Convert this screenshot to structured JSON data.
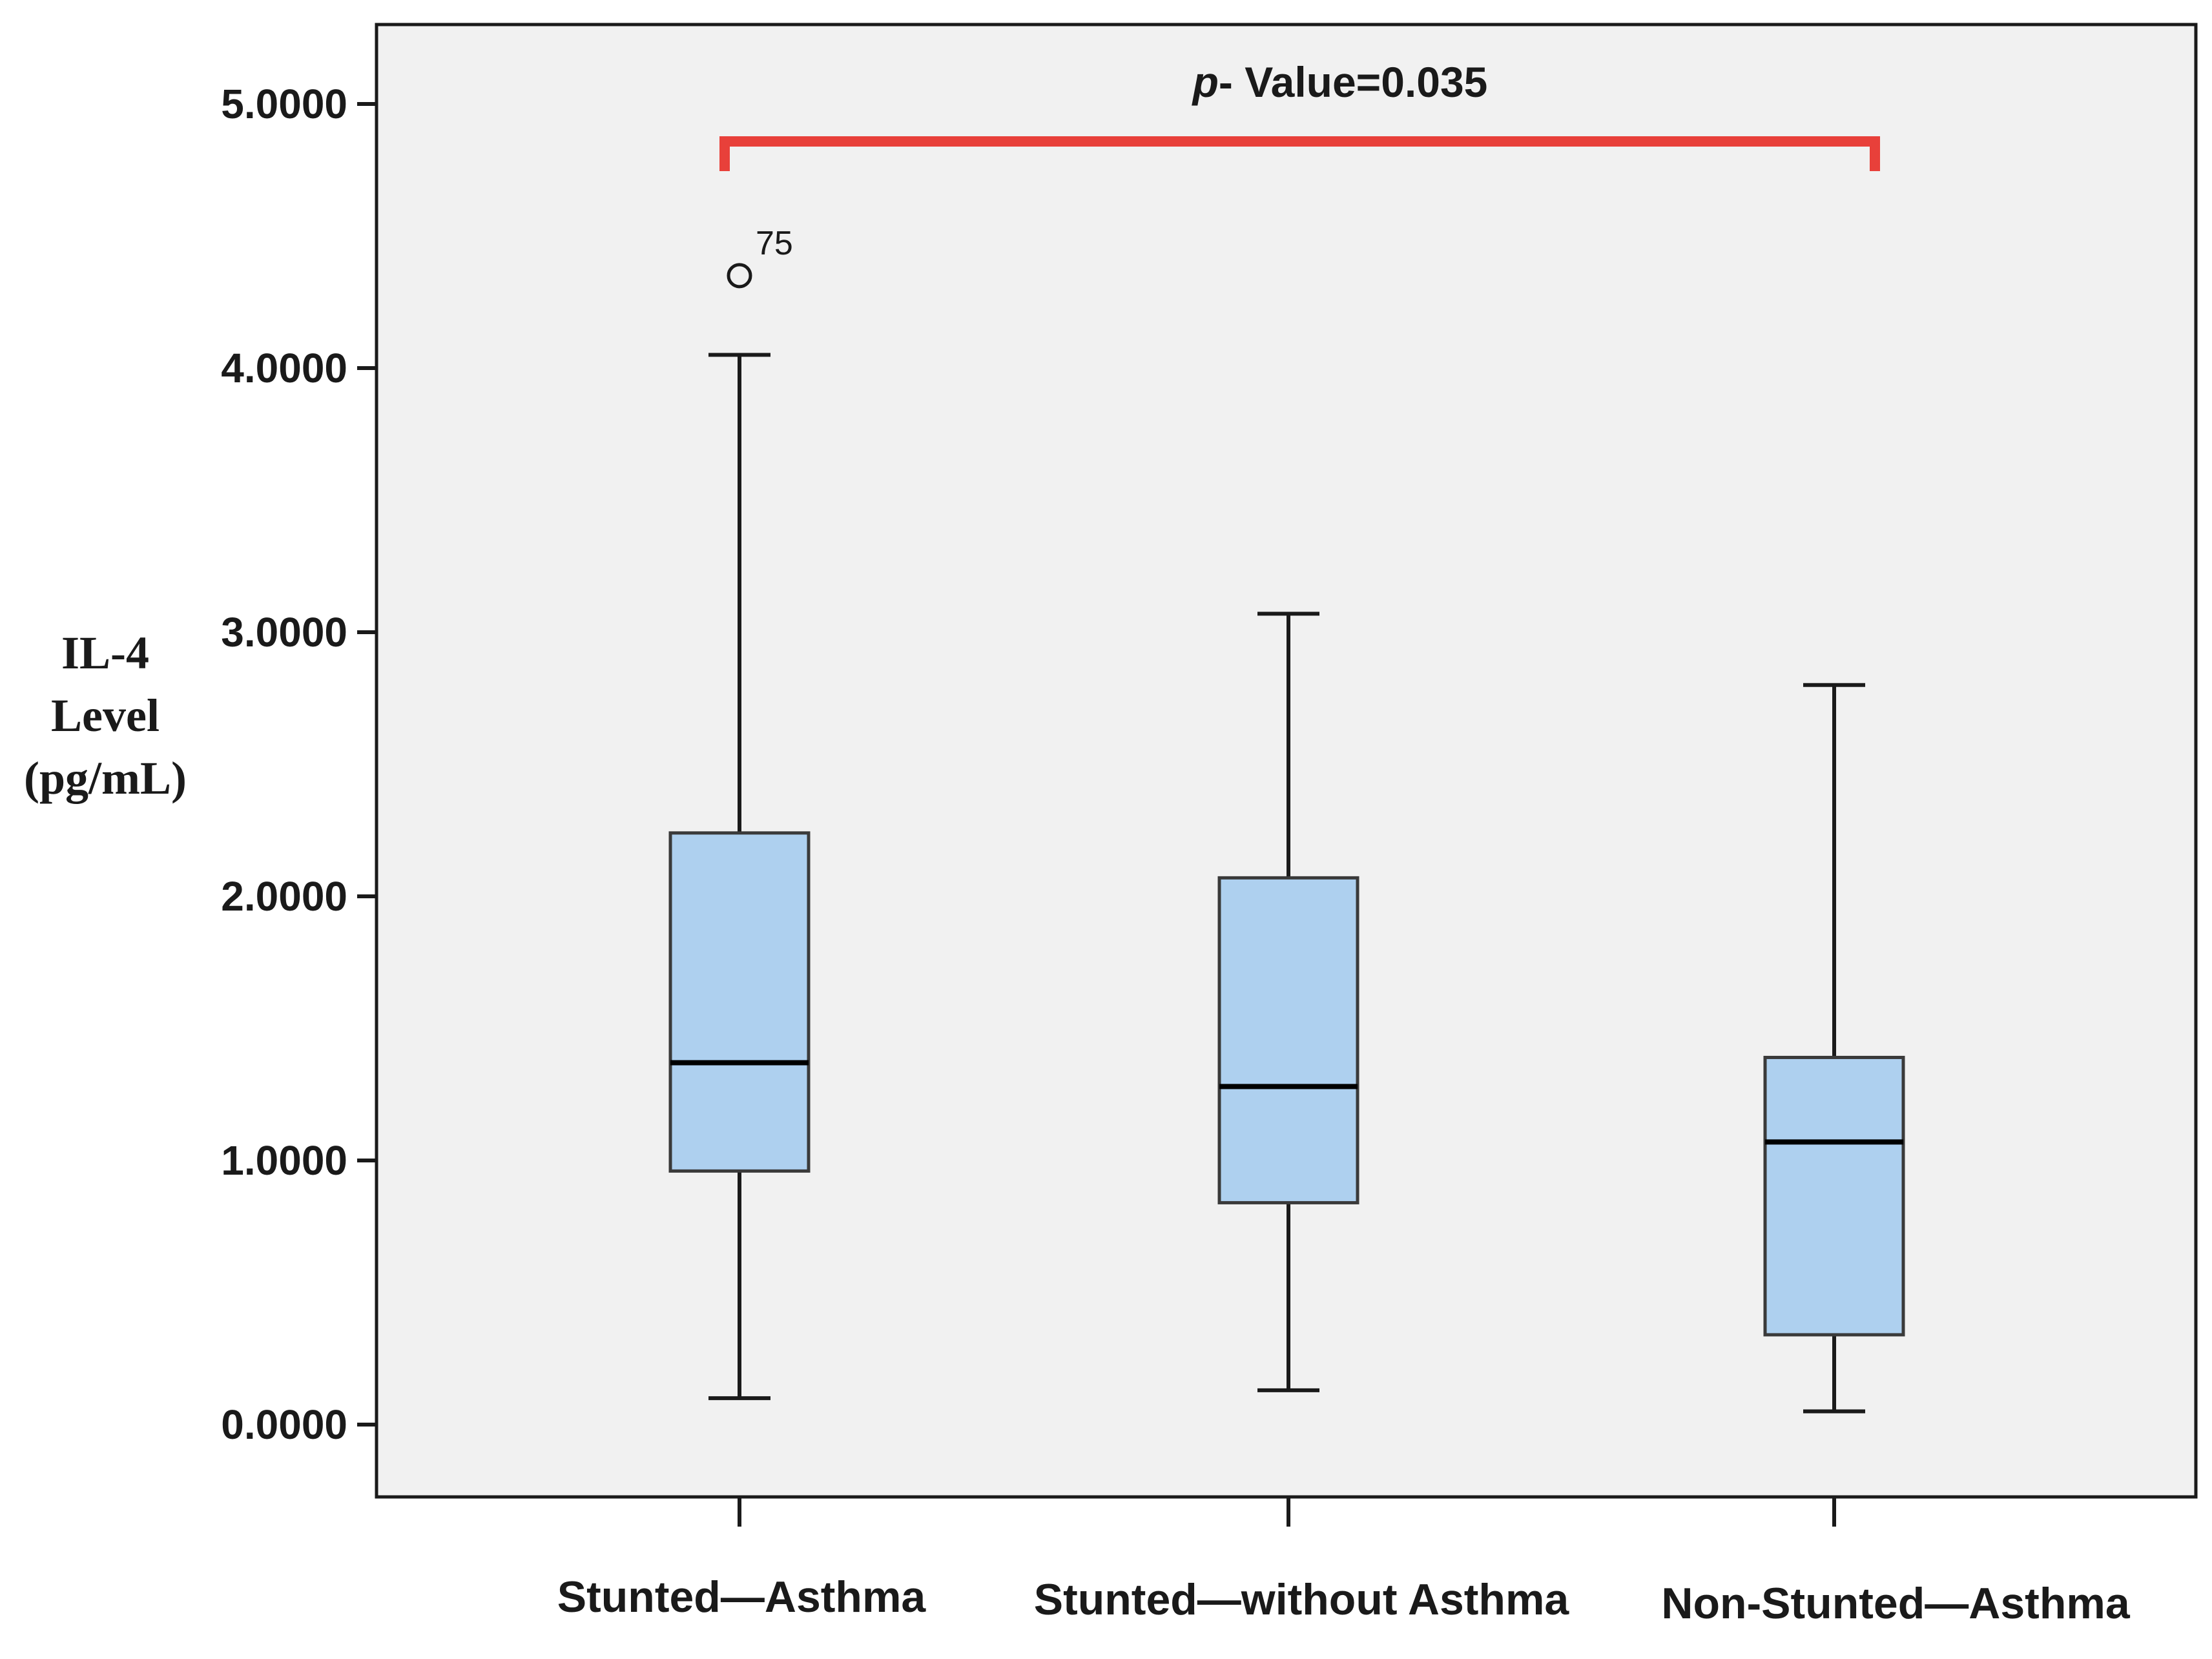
{
  "chart_data": {
    "type": "boxplot",
    "title": "",
    "ylabel": [
      "IL-4",
      "Level",
      "(pg/mL)"
    ],
    "xlabel": "",
    "ylim": [
      0,
      5.25
    ],
    "yticks": [
      0,
      1,
      2,
      3,
      4,
      5
    ],
    "ytick_labels": [
      "0.0000",
      "1.0000",
      "2.0000",
      "3.0000",
      "4.0000",
      "5.0000"
    ],
    "categories": [
      "Stunted—Asthma",
      "Stunted—without Asthma",
      "Non-Stunted—Asthma"
    ],
    "boxes": [
      {
        "name": "Stunted—Asthma",
        "whisker_low": 0.1,
        "q1": 0.96,
        "median": 1.37,
        "q3": 2.24,
        "whisker_high": 4.05
      },
      {
        "name": "Stunted—without Asthma",
        "whisker_low": 0.13,
        "q1": 0.84,
        "median": 1.28,
        "q3": 2.07,
        "whisker_high": 3.07
      },
      {
        "name": "Non-Stunted—Asthma",
        "whisker_low": 0.05,
        "q1": 0.34,
        "median": 1.07,
        "q3": 1.39,
        "whisker_high": 2.8
      }
    ],
    "outliers": [
      {
        "category_index": 0,
        "value": 4.35,
        "label": "75"
      }
    ],
    "annotation": {
      "italic_part": "p",
      "text": "- Value=0.035",
      "from_category_index": 0,
      "to_category_index": 2
    },
    "colors": {
      "box_fill": "#aed0ef",
      "plot_background": "#f1f1f1",
      "bracket": "#e8403a",
      "line": "#1a1a1a"
    }
  }
}
